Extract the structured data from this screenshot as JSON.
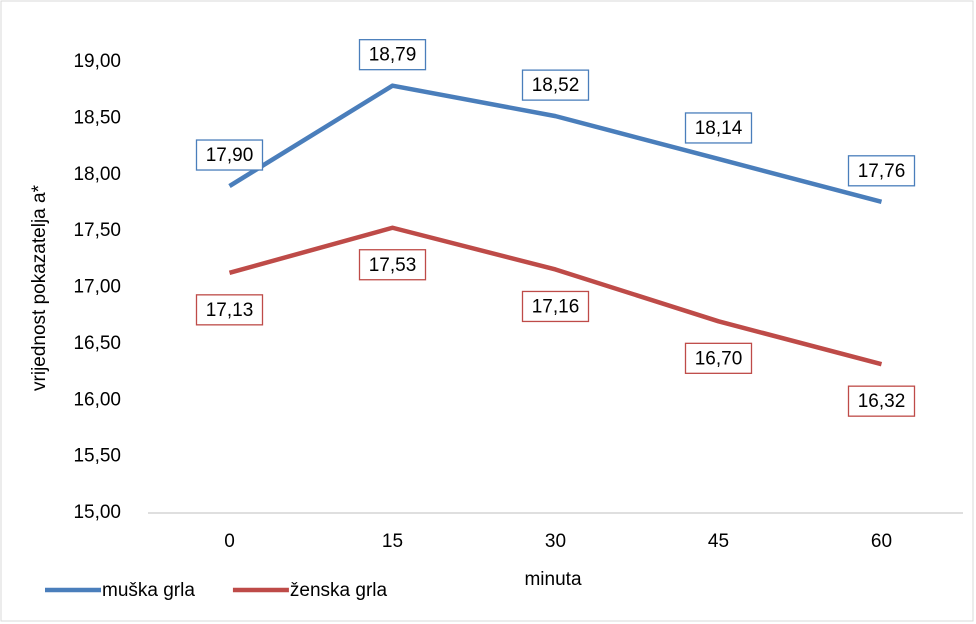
{
  "chart_data": {
    "type": "line",
    "categories": [
      "0",
      "15",
      "30",
      "45",
      "60"
    ],
    "series": [
      {
        "name": "muška grla",
        "color": "#4a7ebb",
        "values": [
          17.9,
          18.79,
          18.52,
          18.14,
          17.76
        ],
        "value_labels": [
          "17,90",
          "18,79",
          "18,52",
          "18,14",
          "17,76"
        ],
        "label_position": "above"
      },
      {
        "name": "ženska grla",
        "color": "#be4b48",
        "values": [
          17.13,
          17.53,
          17.16,
          16.7,
          16.32
        ],
        "value_labels": [
          "17,13",
          "17,53",
          "17,16",
          "16,70",
          "16,32"
        ],
        "label_position": "below"
      }
    ],
    "ylim": [
      15,
      19
    ],
    "yticks": [
      {
        "value": 15,
        "label": "15,00"
      },
      {
        "value": 15.5,
        "label": "15,50"
      },
      {
        "value": 16,
        "label": "16,00"
      },
      {
        "value": 16.5,
        "label": "16,50"
      },
      {
        "value": 17,
        "label": "17,00"
      },
      {
        "value": 17.5,
        "label": "17,50"
      },
      {
        "value": 18,
        "label": "18,00"
      },
      {
        "value": 18.5,
        "label": "18,50"
      },
      {
        "value": 19,
        "label": "19,00"
      }
    ],
    "xlabel": "minuta",
    "ylabel": "vrijednost pokazatelja a*",
    "grid": false,
    "legend": "bottom-left"
  }
}
